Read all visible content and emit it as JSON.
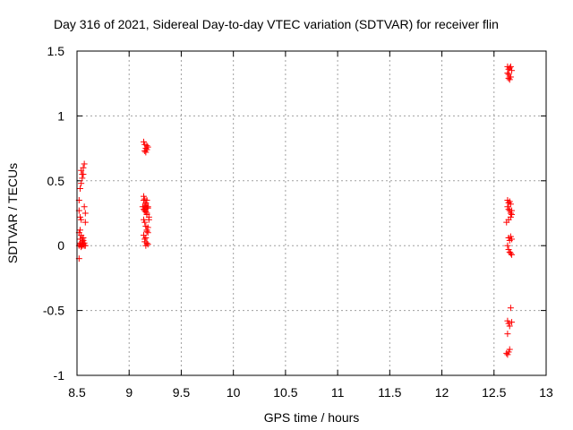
{
  "chart_data": {
    "type": "scatter",
    "title": "Day 316 of 2021, Sidereal Day-to-day VTEC variation (SDTVAR) for receiver flin",
    "xlabel": "GPS time / hours",
    "ylabel": "SDTVAR / TECUs",
    "xlim": [
      8.5,
      13
    ],
    "ylim": [
      -1,
      1.5
    ],
    "xticks": [
      8.5,
      9,
      9.5,
      10,
      10.5,
      11,
      11.5,
      12,
      12.5,
      13
    ],
    "xtick_labels": [
      "8.5",
      "9",
      "9.5",
      "10",
      "10.5",
      "11",
      "11.5",
      "12",
      "12.5",
      "13"
    ],
    "yticks": [
      -1,
      -0.5,
      0,
      0.5,
      1,
      1.5
    ],
    "ytick_labels": [
      "-1",
      "-0.5",
      "0",
      "0.5",
      "1",
      "1.5"
    ],
    "grid": true,
    "marker": "+",
    "color": "#ff0000",
    "series": [
      {
        "name": "SDTVAR",
        "x": [
          8.52,
          8.52,
          8.53,
          8.53,
          8.54,
          8.53,
          8.54,
          8.55,
          8.55,
          8.56,
          8.56,
          8.57,
          8.57,
          8.58,
          8.52,
          8.53,
          8.54,
          8.55,
          8.56,
          8.57,
          8.54,
          8.55,
          8.56,
          8.57,
          8.58,
          8.52,
          8.53,
          8.54,
          8.55,
          8.53,
          8.54,
          8.55,
          8.56,
          8.58,
          8.52,
          9.14,
          9.15,
          9.16,
          9.17,
          9.18,
          9.15,
          9.16,
          9.17,
          9.14,
          9.15,
          9.16,
          9.17,
          9.18,
          9.13,
          9.14,
          9.15,
          9.16,
          9.17,
          9.14,
          9.15,
          9.16,
          9.17,
          9.18,
          9.19,
          9.14,
          9.15,
          9.16,
          9.17,
          9.18,
          9.19,
          9.15,
          9.16,
          9.17,
          9.18,
          9.14,
          9.15,
          9.16,
          9.17,
          9.18,
          9.15,
          9.16,
          9.17,
          12.63,
          12.64,
          12.65,
          12.66,
          12.64,
          12.65,
          12.63,
          12.64,
          12.65,
          12.66,
          12.67,
          12.63,
          12.64,
          12.65,
          12.66,
          12.63,
          12.64,
          12.65,
          12.66,
          12.67,
          12.62,
          12.64,
          12.66,
          12.67,
          12.64,
          12.65,
          12.66,
          12.67,
          12.63,
          12.64,
          12.65,
          12.66,
          12.67,
          12.63,
          12.64,
          12.65,
          12.66,
          12.67,
          12.63,
          12.65,
          12.64,
          12.63,
          12.62
        ],
        "y": [
          -0.1,
          0.0,
          0.02,
          0.05,
          0.0,
          0.12,
          0.2,
          0.03,
          0.0,
          0.01,
          0.06,
          0.0,
          0.02,
          0.18,
          0.35,
          0.44,
          0.48,
          0.55,
          0.6,
          0.63,
          0.58,
          0.52,
          0.55,
          0.3,
          0.25,
          0.27,
          0.22,
          0.08,
          0.05,
          0.01,
          -0.01,
          0.03,
          0.04,
          0.0,
          0.1,
          0.8,
          0.78,
          0.75,
          0.74,
          0.76,
          0.73,
          0.72,
          0.77,
          0.38,
          0.36,
          0.33,
          0.35,
          0.3,
          0.3,
          0.28,
          0.27,
          0.32,
          0.25,
          0.2,
          0.18,
          0.15,
          0.12,
          0.1,
          0.2,
          0.08,
          0.05,
          0.06,
          0.11,
          0.14,
          0.22,
          0.03,
          0.0,
          0.02,
          0.01,
          0.35,
          0.3,
          0.26,
          0.24,
          0.29,
          0.28,
          0.31,
          0.29,
          1.38,
          1.36,
          1.37,
          1.38,
          1.32,
          1.3,
          1.33,
          1.29,
          1.28,
          1.3,
          1.35,
          0.35,
          0.33,
          0.34,
          0.32,
          0.3,
          0.28,
          0.27,
          0.25,
          0.27,
          0.18,
          0.2,
          0.22,
          0.24,
          0.06,
          0.04,
          0.07,
          0.05,
          0.0,
          -0.03,
          -0.05,
          -0.06,
          -0.07,
          -0.58,
          -0.6,
          -0.62,
          -0.48,
          -0.59,
          -0.68,
          -0.8,
          -0.82,
          -0.84,
          -0.83
        ]
      }
    ]
  }
}
